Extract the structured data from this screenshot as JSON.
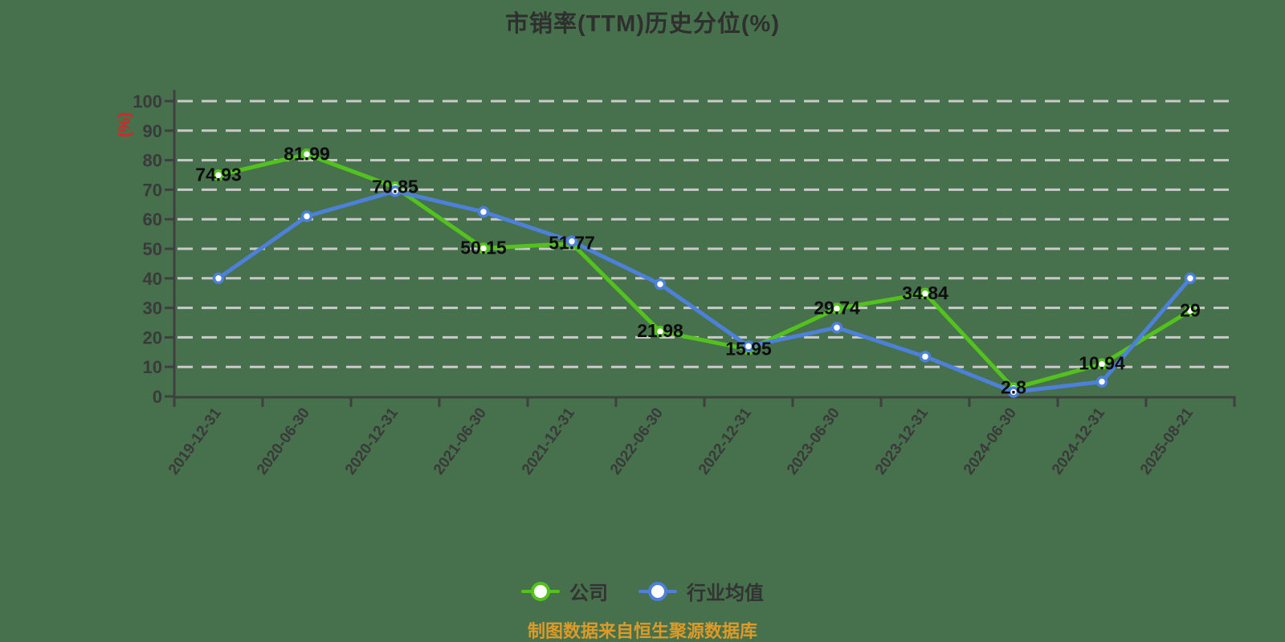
{
  "title": "市销率(TTM)历史分位(%)",
  "y_axis_unit": "(%)",
  "source_note": "制图数据来自恒生聚源数据库",
  "legend": {
    "items": [
      {
        "label": "公司"
      },
      {
        "label": "行业均值"
      }
    ]
  },
  "colors": {
    "background": "#47704d",
    "title_text": "#2f2f2f",
    "axis": "#3f3f3f",
    "gridline": "#cacaca",
    "tick_label": "#3a3a3a",
    "data_label": "#0d0d0d",
    "unit_label": "#e02222",
    "source_text": "#dc9b28",
    "company_green": "#54c21e",
    "industry_blue": "#4d80d8"
  },
  "chart_data": {
    "type": "line",
    "title": "市销率(TTM)历史分位(%)",
    "ylabel": "(%)",
    "ylim": [
      0,
      100
    ],
    "y_ticks": [
      0,
      10,
      20,
      30,
      40,
      50,
      60,
      70,
      80,
      90,
      100
    ],
    "grid": "horizontal-dashed",
    "legend_position": "bottom",
    "categories": [
      "2019-12-31",
      "2020-06-30",
      "2020-12-31",
      "2021-06-30",
      "2021-12-31",
      "2022-06-30",
      "2022-12-31",
      "2023-06-30",
      "2023-12-31",
      "2024-06-30",
      "2024-12-31",
      "2025-08-21"
    ],
    "series": [
      {
        "key": "company",
        "name": "公司",
        "color": "#54c21e",
        "show_labels": true,
        "values": [
          74.93,
          81.99,
          70.85,
          50.15,
          51.77,
          21.98,
          15.95,
          29.74,
          34.84,
          2.8,
          10.94,
          29
        ]
      },
      {
        "key": "industry-average",
        "name": "行业均值",
        "color": "#4d80d8",
        "show_labels": false,
        "values": [
          40,
          61,
          69.5,
          62.5,
          52.5,
          38,
          17,
          23.3,
          13.5,
          1.5,
          5,
          40
        ]
      }
    ]
  }
}
